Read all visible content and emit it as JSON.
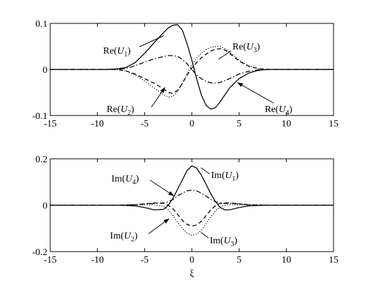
{
  "chart_data": [
    {
      "type": "line",
      "x": [
        -15,
        -12,
        -9,
        -8,
        -7,
        -6,
        -5,
        -4,
        -3,
        -2.5,
        -2,
        -1.5,
        -1,
        -0.5,
        0,
        0.5,
        1,
        1.5,
        2,
        2.5,
        3,
        3.5,
        4,
        5,
        6,
        7,
        8,
        9,
        12,
        15
      ],
      "xlim": [
        -15,
        15
      ],
      "xticks": [
        -15,
        -10,
        -5,
        0,
        5,
        10,
        15
      ],
      "ylim": [
        -0.1,
        0.1
      ],
      "yticks": [
        -0.1,
        0,
        0.1
      ],
      "series": [
        {
          "name": "Re(U1)",
          "color": "#000000",
          "line_style": "solid",
          "values": [
            0,
            0,
            0,
            0.001,
            0.004,
            0.015,
            0.035,
            0.058,
            0.08,
            0.09,
            0.096,
            0.097,
            0.085,
            0.055,
            0.02,
            -0.02,
            -0.055,
            -0.078,
            -0.086,
            -0.083,
            -0.07,
            -0.055,
            -0.04,
            -0.02,
            -0.008,
            -0.002,
            0,
            0,
            0,
            0
          ]
        },
        {
          "name": "Re(U2)",
          "color": "#000000",
          "line_style": "dashed",
          "values": [
            0,
            0,
            0,
            0,
            -0.003,
            -0.01,
            -0.02,
            -0.03,
            -0.042,
            -0.05,
            -0.052,
            -0.045,
            -0.03,
            -0.012,
            0.003,
            0.015,
            0.025,
            0.033,
            0.04,
            0.044,
            0.045,
            0.042,
            0.035,
            0.018,
            0.007,
            0.002,
            0,
            0,
            0,
            0
          ]
        },
        {
          "name": "Re(U3)",
          "color": "#000000",
          "line_style": "dotted",
          "values": [
            0,
            0,
            0,
            0,
            -0.003,
            -0.012,
            -0.025,
            -0.04,
            -0.055,
            -0.06,
            -0.058,
            -0.048,
            -0.03,
            -0.01,
            0.01,
            0.025,
            0.035,
            0.043,
            0.048,
            0.05,
            0.05,
            0.045,
            0.038,
            0.02,
            0.008,
            0.002,
            0,
            0,
            0,
            0
          ]
        },
        {
          "name": "Re(U4)",
          "color": "#000000",
          "line_style": "dashdot",
          "values": [
            0,
            0,
            0,
            0,
            0.002,
            0.008,
            0.016,
            0.023,
            0.028,
            0.03,
            0.03,
            0.028,
            0.022,
            0.012,
            0,
            -0.012,
            -0.02,
            -0.026,
            -0.029,
            -0.03,
            -0.028,
            -0.024,
            -0.02,
            -0.01,
            -0.004,
            -0.001,
            0,
            0,
            0,
            0
          ]
        }
      ]
    },
    {
      "type": "line",
      "x": [
        -15,
        -12,
        -9,
        -8,
        -7,
        -6,
        -5,
        -4,
        -3,
        -2.5,
        -2,
        -1.5,
        -1,
        -0.5,
        0,
        0.5,
        1,
        1.5,
        2,
        2.5,
        3,
        3.5,
        4,
        5,
        6,
        7,
        8,
        9,
        12,
        15
      ],
      "xlim": [
        -15,
        15
      ],
      "xticks": [
        -15,
        -10,
        -5,
        0,
        5,
        10,
        15
      ],
      "ylim": [
        -0.2,
        0.2
      ],
      "yticks": [
        -0.2,
        0,
        0.2
      ],
      "xlabel": "ξ",
      "series": [
        {
          "name": "Im(U1)",
          "color": "#000000",
          "line_style": "solid",
          "values": [
            0,
            0,
            0,
            0,
            -0.001,
            -0.003,
            -0.01,
            -0.02,
            -0.018,
            0,
            0.03,
            0.07,
            0.11,
            0.15,
            0.17,
            0.16,
            0.13,
            0.09,
            0.05,
            0.015,
            -0.01,
            -0.02,
            -0.02,
            -0.01,
            -0.003,
            -0.001,
            0,
            0,
            0,
            0
          ]
        },
        {
          "name": "Im(U2)",
          "color": "#000000",
          "line_style": "dashed",
          "values": [
            0,
            0,
            0,
            0,
            0.001,
            0.002,
            0.006,
            0.01,
            0.008,
            0,
            -0.015,
            -0.04,
            -0.065,
            -0.083,
            -0.09,
            -0.085,
            -0.07,
            -0.045,
            -0.02,
            -0.002,
            0.008,
            0.01,
            0.01,
            0.006,
            0.002,
            0.001,
            0,
            0,
            0,
            0
          ]
        },
        {
          "name": "Im(U3)",
          "color": "#000000",
          "line_style": "dotted",
          "values": [
            0,
            0,
            0,
            0,
            0,
            0.001,
            0.002,
            0.002,
            -0.005,
            -0.02,
            -0.045,
            -0.075,
            -0.1,
            -0.12,
            -0.13,
            -0.125,
            -0.108,
            -0.08,
            -0.05,
            -0.025,
            -0.008,
            0,
            0.002,
            0.002,
            0.001,
            0,
            0,
            0,
            0,
            0
          ]
        },
        {
          "name": "Im(U4)",
          "color": "#000000",
          "line_style": "dashdot",
          "values": [
            0,
            0,
            0,
            0,
            0.001,
            0.002,
            0.006,
            0.008,
            0.01,
            0.015,
            0.025,
            0.04,
            0.052,
            0.062,
            0.065,
            0.062,
            0.052,
            0.04,
            0.025,
            0.015,
            0.01,
            0.008,
            0.008,
            0.006,
            0.002,
            0.001,
            0,
            0,
            0,
            0
          ]
        }
      ]
    }
  ]
}
